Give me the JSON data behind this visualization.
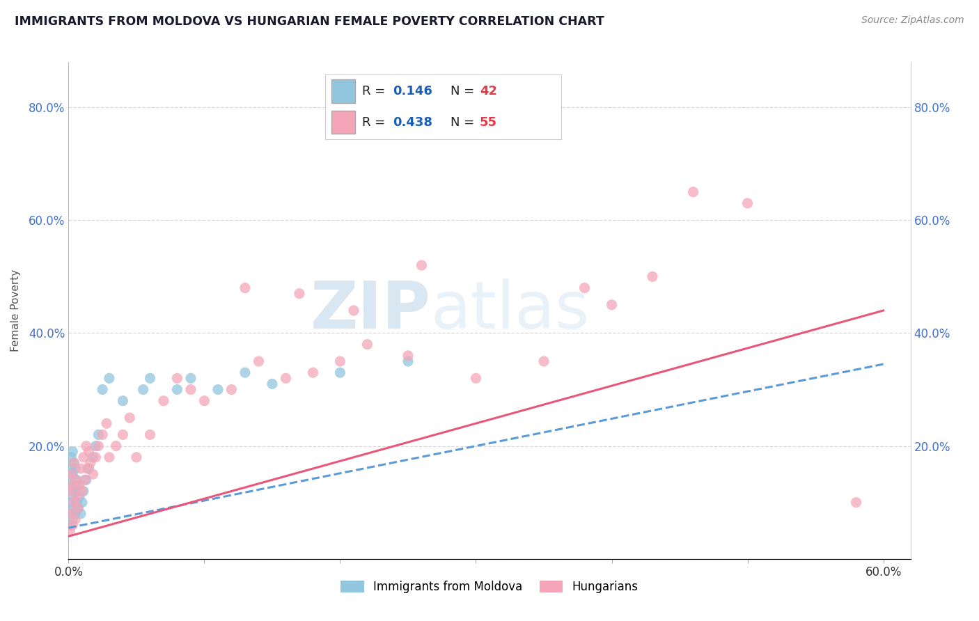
{
  "title": "IMMIGRANTS FROM MOLDOVA VS HUNGARIAN FEMALE POVERTY CORRELATION CHART",
  "source": "Source: ZipAtlas.com",
  "ylabel": "Female Poverty",
  "xlim": [
    0.0,
    0.62
  ],
  "ylim": [
    0.0,
    0.88
  ],
  "xtick_vals": [
    0.0,
    0.1,
    0.2,
    0.3,
    0.4,
    0.5,
    0.6
  ],
  "xticklabels": [
    "0.0%",
    "",
    "",
    "",
    "",
    "",
    "60.0%"
  ],
  "ytick_vals": [
    0.0,
    0.2,
    0.4,
    0.6,
    0.8
  ],
  "yticklabels": [
    "",
    "20.0%",
    "40.0%",
    "60.0%",
    "80.0%"
  ],
  "series1_color": "#92c5de",
  "series2_color": "#f4a6b8",
  "series1_line_color": "#5b9bd5",
  "series2_line_color": "#e8567a",
  "r1": 0.146,
  "n1": 42,
  "r2": 0.438,
  "n2": 55,
  "watermark": "ZIPatlas",
  "grid_color": "#d0d0d0",
  "background_color": "#ffffff",
  "scatter1_x": [
    0.001,
    0.001,
    0.001,
    0.002,
    0.002,
    0.002,
    0.002,
    0.003,
    0.003,
    0.003,
    0.003,
    0.004,
    0.004,
    0.004,
    0.005,
    0.005,
    0.005,
    0.006,
    0.006,
    0.007,
    0.007,
    0.008,
    0.009,
    0.01,
    0.011,
    0.013,
    0.015,
    0.018,
    0.02,
    0.022,
    0.025,
    0.03,
    0.04,
    0.055,
    0.06,
    0.08,
    0.09,
    0.11,
    0.13,
    0.15,
    0.2,
    0.25
  ],
  "scatter1_y": [
    0.06,
    0.1,
    0.14,
    0.08,
    0.12,
    0.16,
    0.18,
    0.07,
    0.11,
    0.15,
    0.19,
    0.09,
    0.13,
    0.17,
    0.08,
    0.12,
    0.16,
    0.1,
    0.14,
    0.09,
    0.13,
    0.11,
    0.08,
    0.1,
    0.12,
    0.14,
    0.16,
    0.18,
    0.2,
    0.22,
    0.3,
    0.32,
    0.28,
    0.3,
    0.32,
    0.3,
    0.32,
    0.3,
    0.33,
    0.31,
    0.33,
    0.35
  ],
  "scatter2_x": [
    0.001,
    0.001,
    0.002,
    0.002,
    0.003,
    0.003,
    0.004,
    0.004,
    0.005,
    0.005,
    0.006,
    0.007,
    0.008,
    0.009,
    0.01,
    0.011,
    0.012,
    0.013,
    0.014,
    0.015,
    0.016,
    0.018,
    0.02,
    0.022,
    0.025,
    0.028,
    0.03,
    0.035,
    0.04,
    0.045,
    0.05,
    0.06,
    0.07,
    0.08,
    0.09,
    0.1,
    0.12,
    0.14,
    0.16,
    0.18,
    0.2,
    0.22,
    0.25,
    0.3,
    0.35,
    0.38,
    0.4,
    0.43,
    0.46,
    0.5,
    0.13,
    0.17,
    0.21,
    0.26,
    0.58
  ],
  "scatter2_y": [
    0.05,
    0.12,
    0.08,
    0.15,
    0.06,
    0.13,
    0.1,
    0.17,
    0.07,
    0.14,
    0.11,
    0.09,
    0.13,
    0.16,
    0.12,
    0.18,
    0.14,
    0.2,
    0.16,
    0.19,
    0.17,
    0.15,
    0.18,
    0.2,
    0.22,
    0.24,
    0.18,
    0.2,
    0.22,
    0.25,
    0.18,
    0.22,
    0.28,
    0.32,
    0.3,
    0.28,
    0.3,
    0.35,
    0.32,
    0.33,
    0.35,
    0.38,
    0.36,
    0.32,
    0.35,
    0.48,
    0.45,
    0.5,
    0.65,
    0.63,
    0.48,
    0.47,
    0.44,
    0.52,
    0.1
  ],
  "line1_x0": 0.0,
  "line1_y0": 0.055,
  "line1_x1": 0.6,
  "line1_y1": 0.345,
  "line2_x0": 0.0,
  "line2_y0": 0.04,
  "line2_x1": 0.6,
  "line2_y1": 0.44
}
